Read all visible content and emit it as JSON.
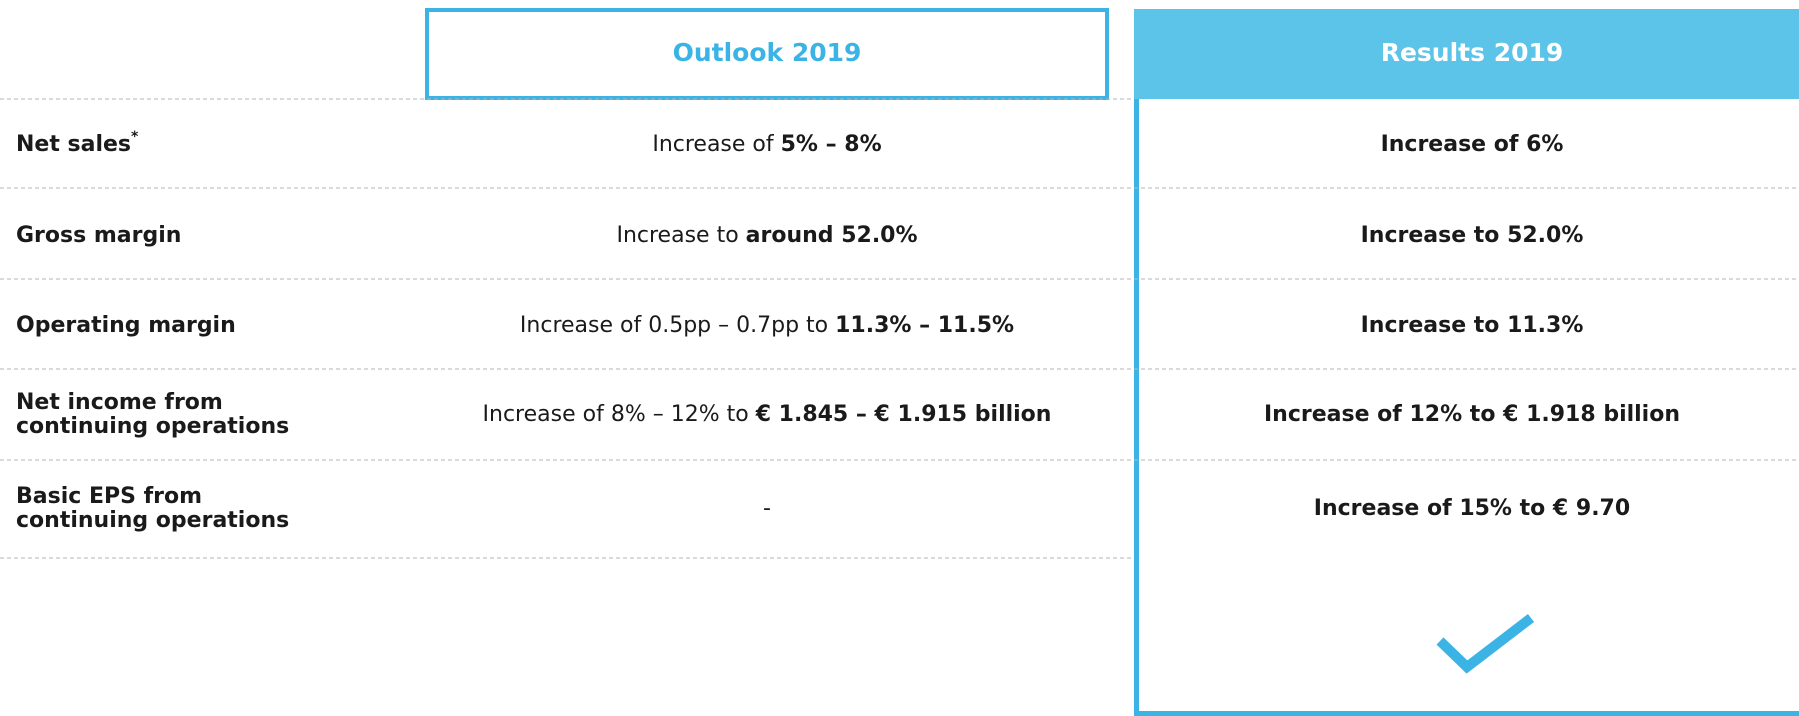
{
  "header": {
    "outlook": "Outlook 2019",
    "results": "Results 2019"
  },
  "rows": [
    {
      "label": [
        "Net sales"
      ],
      "label_sup": "*",
      "outlook": [
        {
          "text": "Increase of ",
          "bold": false
        },
        {
          "text": "5% – 8%",
          "bold": true
        }
      ],
      "results": "Increase of 6%"
    },
    {
      "label": [
        "Gross margin"
      ],
      "outlook": [
        {
          "text": "Increase to ",
          "bold": false
        },
        {
          "text": "around 52.0%",
          "bold": true
        }
      ],
      "results": "Increase to 52.0%"
    },
    {
      "label": [
        "Operating margin"
      ],
      "outlook": [
        {
          "text": "Increase of 0.5pp – 0.7pp to ",
          "bold": false
        },
        {
          "text": "11.3% – 11.5%",
          "bold": true
        }
      ],
      "results": "Increase to 11.3%"
    },
    {
      "label": [
        "Net income from",
        "continuing operations"
      ],
      "outlook": [
        {
          "text": "Increase of 8% – 12% to ",
          "bold": false
        },
        {
          "text": "€ 1.845 – € 1.915 billion",
          "bold": true
        }
      ],
      "results": "Increase of 12% to € 1.918 billion"
    },
    {
      "label": [
        "Basic EPS from",
        "continuing operations"
      ],
      "outlook": [
        {
          "text": "-",
          "bold": false
        }
      ],
      "results": "Increase of 15% to € 9.70"
    }
  ]
}
